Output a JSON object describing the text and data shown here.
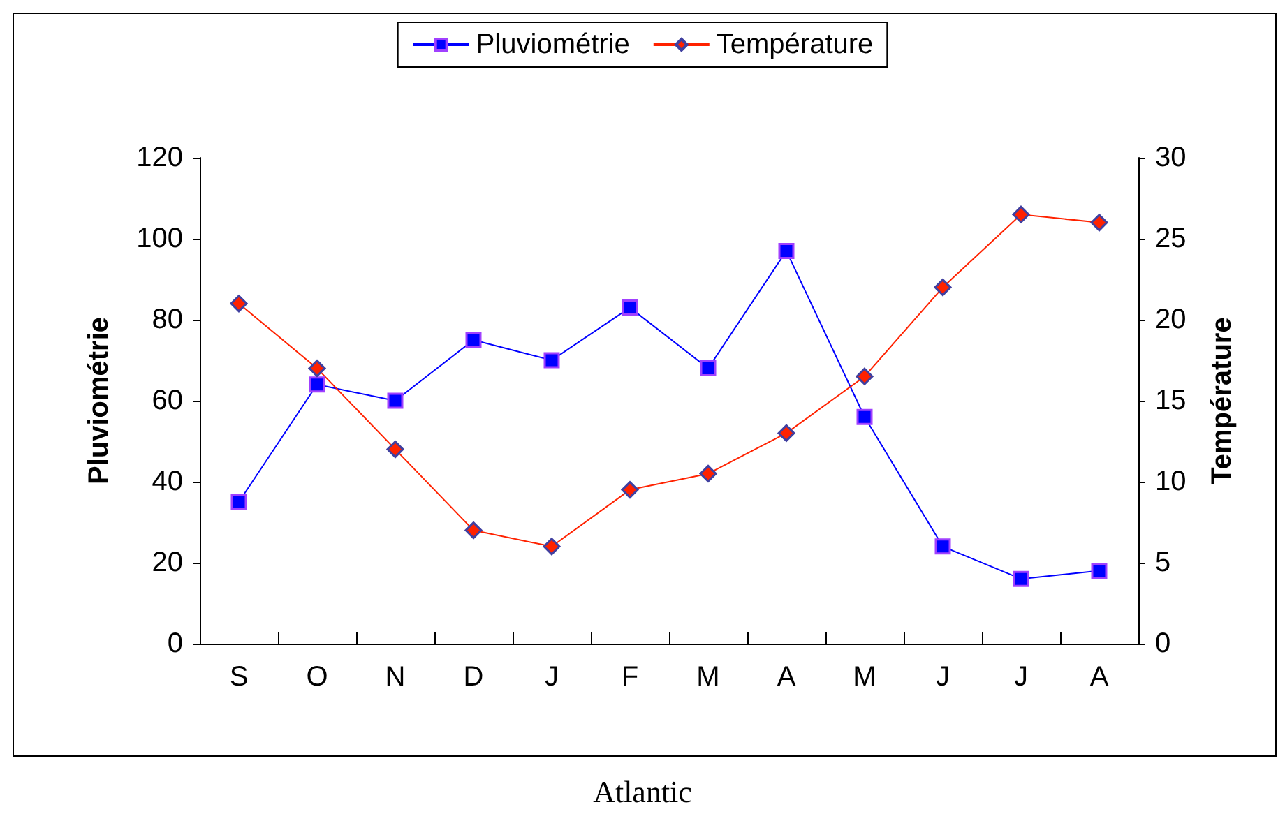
{
  "chart_data": {
    "type": "line",
    "categories": [
      "S",
      "O",
      "N",
      "D",
      "J",
      "F",
      "M",
      "A",
      "M",
      "J",
      "J",
      "A"
    ],
    "series": [
      {
        "name": "Pluviométrie",
        "color": "#0000ff",
        "marker": "square",
        "values": [
          35,
          64,
          60,
          75,
          70,
          83,
          68,
          97,
          56,
          24,
          16,
          18
        ]
      },
      {
        "name": "Température",
        "color": "#ff2200",
        "marker": "diamond",
        "axis": "y2",
        "values": [
          21,
          17,
          12,
          7,
          6,
          9.5,
          10.5,
          13,
          16.5,
          22,
          26.5,
          26
        ]
      }
    ],
    "ylabel": "Pluviométrie",
    "y2label": "Température",
    "ylim": [
      0,
      120
    ],
    "yticks": [
      0,
      20,
      40,
      60,
      80,
      100,
      120
    ],
    "y2lim": [
      0,
      30
    ],
    "y2ticks": [
      0,
      5,
      10,
      15,
      20,
      25,
      30
    ],
    "legend": "top",
    "grid": false,
    "annotations": [
      "Atlantic"
    ]
  }
}
